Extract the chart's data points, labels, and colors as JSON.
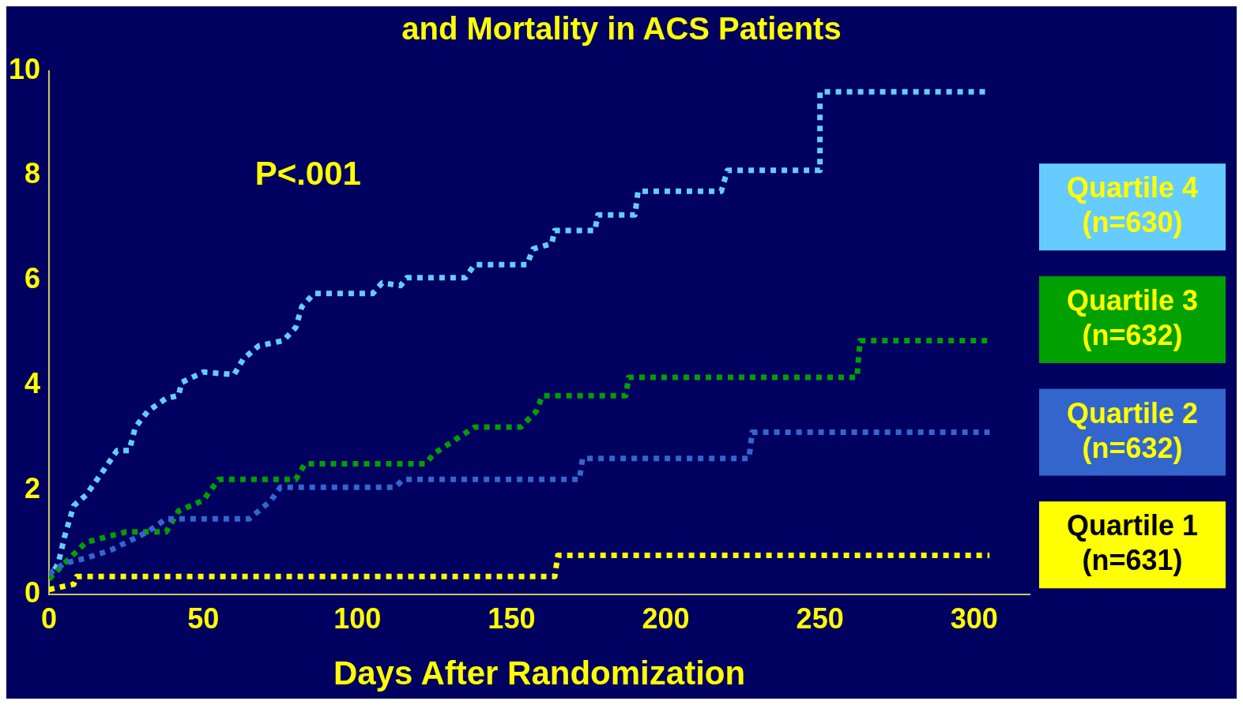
{
  "chart_data": {
    "type": "line",
    "title": "and Mortality in ACS Patients",
    "xlabel": "Days After Randomization",
    "xlim": [
      0,
      318
    ],
    "ylim": [
      0,
      10
    ],
    "xticks": [
      0,
      50,
      100,
      150,
      200,
      250,
      300
    ],
    "yticks": [
      0,
      2,
      4,
      6,
      8,
      10
    ],
    "grid": false,
    "legend": "right",
    "marker": "none",
    "line_style": "dotted",
    "annotations": [
      "P<.001"
    ],
    "series": [
      {
        "name": "Quartile 1 (n=631)",
        "color": "#ffff00",
        "x": [
          0,
          8,
          9,
          164,
          165,
          305
        ],
        "values": [
          0.1,
          0.2,
          0.35,
          0.35,
          0.75,
          0.75
        ]
      },
      {
        "name": "Quartile 2 (n=632)",
        "color": "#3366cc",
        "x": [
          0,
          5,
          12,
          20,
          32,
          38,
          65,
          72,
          75,
          112,
          115,
          172,
          173,
          227,
          228,
          305
        ],
        "values": [
          0.4,
          0.6,
          0.7,
          0.85,
          1.2,
          1.45,
          1.45,
          1.8,
          2.05,
          2.05,
          2.2,
          2.2,
          2.6,
          2.6,
          3.1,
          3.1
        ]
      },
      {
        "name": "Quartile 3 (n=632)",
        "color": "#00a000",
        "x": [
          0,
          5,
          12,
          25,
          38,
          42,
          50,
          55,
          80,
          83,
          122,
          125,
          138,
          153,
          158,
          160,
          187,
          188,
          262,
          263,
          305
        ],
        "values": [
          0.3,
          0.6,
          1.0,
          1.2,
          1.2,
          1.6,
          1.8,
          2.2,
          2.2,
          2.5,
          2.5,
          2.7,
          3.2,
          3.2,
          3.5,
          3.8,
          3.8,
          4.15,
          4.15,
          4.85,
          4.85
        ]
      },
      {
        "name": "Quartile 4 (n=630)",
        "color": "#66ccff",
        "x": [
          0,
          3,
          5,
          8,
          12,
          18,
          22,
          26,
          28,
          32,
          38,
          42,
          43,
          50,
          60,
          63,
          68,
          76,
          80,
          82,
          86,
          105,
          108,
          114,
          116,
          135,
          138,
          155,
          157,
          163,
          164,
          177,
          178,
          190,
          191,
          218,
          220,
          250,
          250,
          305
        ],
        "values": [
          0.3,
          0.6,
          1.1,
          1.7,
          1.9,
          2.4,
          2.75,
          2.75,
          3.2,
          3.5,
          3.75,
          3.8,
          4.05,
          4.25,
          4.2,
          4.5,
          4.75,
          4.85,
          5.1,
          5.5,
          5.75,
          5.75,
          5.95,
          5.9,
          6.05,
          6.05,
          6.3,
          6.3,
          6.6,
          6.7,
          6.95,
          6.95,
          7.25,
          7.25,
          7.7,
          7.7,
          8.1,
          8.1,
          9.6,
          9.6
        ]
      }
    ]
  }
}
